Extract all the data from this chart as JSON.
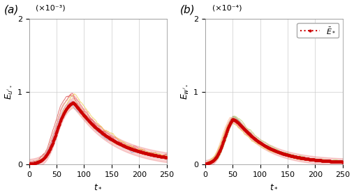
{
  "xlim": [
    0,
    250
  ],
  "ylim_a": [
    0,
    2
  ],
  "ylim_b": [
    0,
    2
  ],
  "scale_a": 0.001,
  "scale_b": 0.0001,
  "xlabel": "$t_*$",
  "ylabel_a": "$E_{u'_*}$",
  "ylabel_b": "$E_{w'_*}$",
  "label_a": "(a)",
  "label_b": "(b)",
  "scale_label_a": "(×10⁻³)",
  "scale_label_b": "(×10⁻⁴)",
  "legend_label": "$\\bar{E}_*$",
  "mean_color": "#cc0000",
  "grid_color": "#cccccc",
  "bg_color": "#ffffff",
  "tick_fontsize": 8,
  "label_fontsize": 9,
  "panel_label_fontsize": 11,
  "colors_a": [
    "#f4a0a0",
    "#f08080",
    "#e06060",
    "#ffccaa",
    "#f0d060",
    "#aaaacc",
    "#d4a0c0",
    "#e8c0a0"
  ],
  "colors_b": [
    "#f4a0a0",
    "#f08080",
    "#ffccaa",
    "#f0d060",
    "#80b080",
    "#aaaacc",
    "#e8c0a0",
    "#c0d880"
  ]
}
